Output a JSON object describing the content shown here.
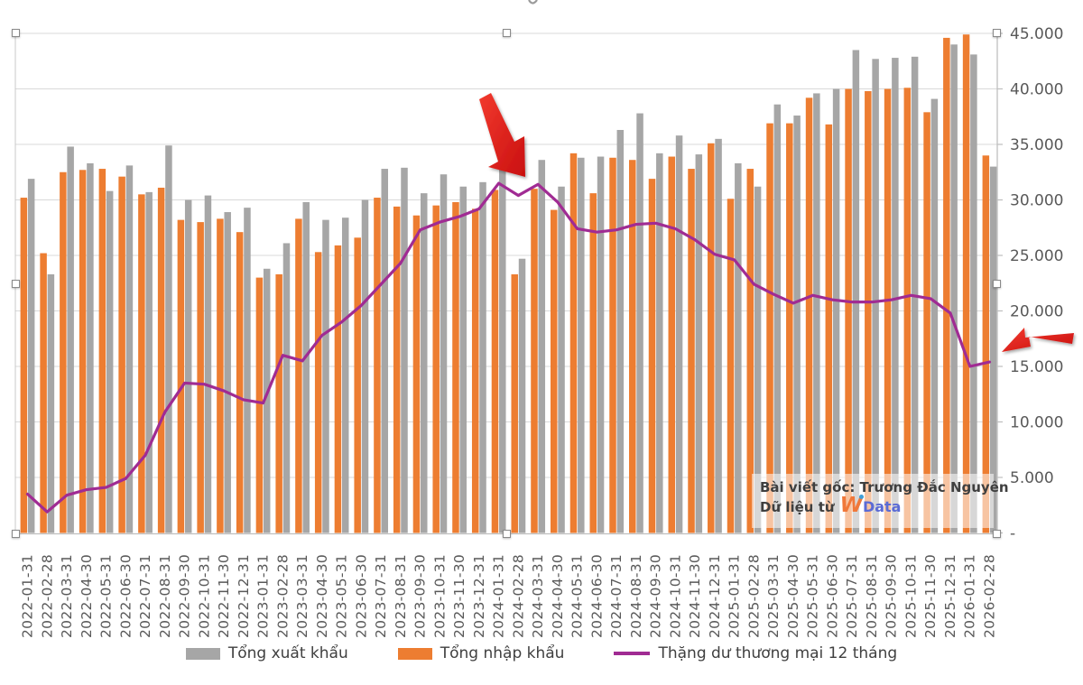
{
  "chart_data": {
    "type": "bar+line",
    "x_axis_label": "",
    "y_axis_side": "right",
    "y_axis": {
      "min": 0,
      "max": 45000,
      "grid": true,
      "ticks": [
        {
          "v": 45000,
          "label": "45.000"
        },
        {
          "v": 40000,
          "label": "40.000"
        },
        {
          "v": 35000,
          "label": "35.000"
        },
        {
          "v": 30000,
          "label": "30.000"
        },
        {
          "v": 25000,
          "label": "25.000"
        },
        {
          "v": 20000,
          "label": "20.000"
        },
        {
          "v": 15000,
          "label": "15.000"
        },
        {
          "v": 10000,
          "label": "10.000"
        },
        {
          "v": 5000,
          "label": "5.000"
        },
        {
          "v": 0,
          "label": "-"
        }
      ]
    },
    "months": [
      "2022-01-31",
      "2022-02-28",
      "2022-03-31",
      "2022-04-30",
      "2022-05-31",
      "2022-06-30",
      "2022-07-31",
      "2022-08-31",
      "2022-09-30",
      "2022-10-31",
      "2022-11-30",
      "2022-12-31",
      "2023-01-31",
      "2023-02-28",
      "2023-03-31",
      "2023-04-30",
      "2023-05-31",
      "2023-06-30",
      "2023-07-31",
      "2023-08-31",
      "2023-09-30",
      "2023-10-31",
      "2023-11-30",
      "2023-12-31",
      "2024-01-31",
      "2024-02-28",
      "2024-03-31",
      "2024-04-30",
      "2024-05-31",
      "2024-06-30",
      "2024-07-31",
      "2024-08-31",
      "2024-09-30",
      "2024-10-31",
      "2024-11-30",
      "2024-12-31",
      "2025-01-31",
      "2025-02-28",
      "2025-03-31",
      "2025-04-30",
      "2025-05-31",
      "2025-06-30",
      "2025-07-31",
      "2025-08-31",
      "2025-09-30",
      "2025-10-31",
      "2025-11-30",
      "2025-12-31",
      "2026-01-31",
      "2026-02-28"
    ],
    "series": [
      {
        "name": "Tổng xuất khẩu",
        "type": "bar",
        "color": "#A6A6A6",
        "position": "right-of-pair",
        "values": [
          31900,
          23300,
          34800,
          33300,
          30800,
          33100,
          30700,
          34900,
          30000,
          30400,
          28900,
          29300,
          23800,
          26100,
          29800,
          28200,
          28400,
          30000,
          32800,
          32900,
          30600,
          32300,
          31200,
          31600,
          34600,
          24700,
          33600,
          31200,
          33800,
          33900,
          36300,
          37800,
          34200,
          35800,
          34100,
          35500,
          33300,
          31200,
          38600,
          37600,
          39600,
          40000,
          43500,
          42700,
          42800,
          42900,
          39100,
          44000,
          43100,
          33000
        ]
      },
      {
        "name": "Tổng nhập khẩu",
        "type": "bar",
        "color": "#ED7D31",
        "position": "left-of-pair",
        "values": [
          30200,
          25200,
          32500,
          32700,
          32800,
          32100,
          30500,
          31100,
          28200,
          28000,
          28300,
          27100,
          23000,
          23300,
          28300,
          25300,
          25900,
          26600,
          30200,
          29400,
          28600,
          29500,
          29800,
          29200,
          30900,
          23300,
          31000,
          29100,
          34200,
          30600,
          33800,
          33600,
          31900,
          33900,
          32800,
          35100,
          30100,
          32800,
          36900,
          36900,
          39200,
          36800,
          40000,
          39800,
          40000,
          40100,
          37900,
          44600,
          44900,
          34000
        ]
      },
      {
        "name": "Thặng dư thương mại 12 tháng",
        "type": "line",
        "color": "#A02B93",
        "values": [
          3500,
          1900,
          3400,
          3900,
          4100,
          4900,
          7000,
          10900,
          13500,
          13400,
          12800,
          12000,
          11700,
          16000,
          15500,
          17800,
          19000,
          20500,
          22400,
          24300,
          27300,
          28000,
          28500,
          29200,
          31500,
          30400,
          31400,
          29800,
          27400,
          27100,
          27300,
          27800,
          27900,
          27400,
          26400,
          25100,
          24600,
          22400,
          21500,
          20700,
          21400,
          21000,
          20800,
          20800,
          21000,
          21400,
          21100,
          19800,
          15000,
          15400
        ]
      }
    ],
    "legend_position": "bottom"
  },
  "legend": {
    "export_label": "Tổng xuất khẩu",
    "import_label": "Tổng nhập khẩu",
    "surplus_label": "Thặng dư thương mại 12 tháng"
  },
  "annotation_box": {
    "line1": "Bài viết gốc: Trương Đắc Nguyên",
    "line2_prefix": "Dữ liệu từ",
    "logo_w": "W",
    "logo_rest": "Data"
  },
  "colors": {
    "export_bar": "#A6A6A6",
    "import_bar": "#ED7D31",
    "surplus_line": "#A02B93",
    "gridline": "#D9D9D9",
    "axis": "#BFBFBF",
    "tick_text": "#595959",
    "arrow_red": "#E31E18"
  }
}
